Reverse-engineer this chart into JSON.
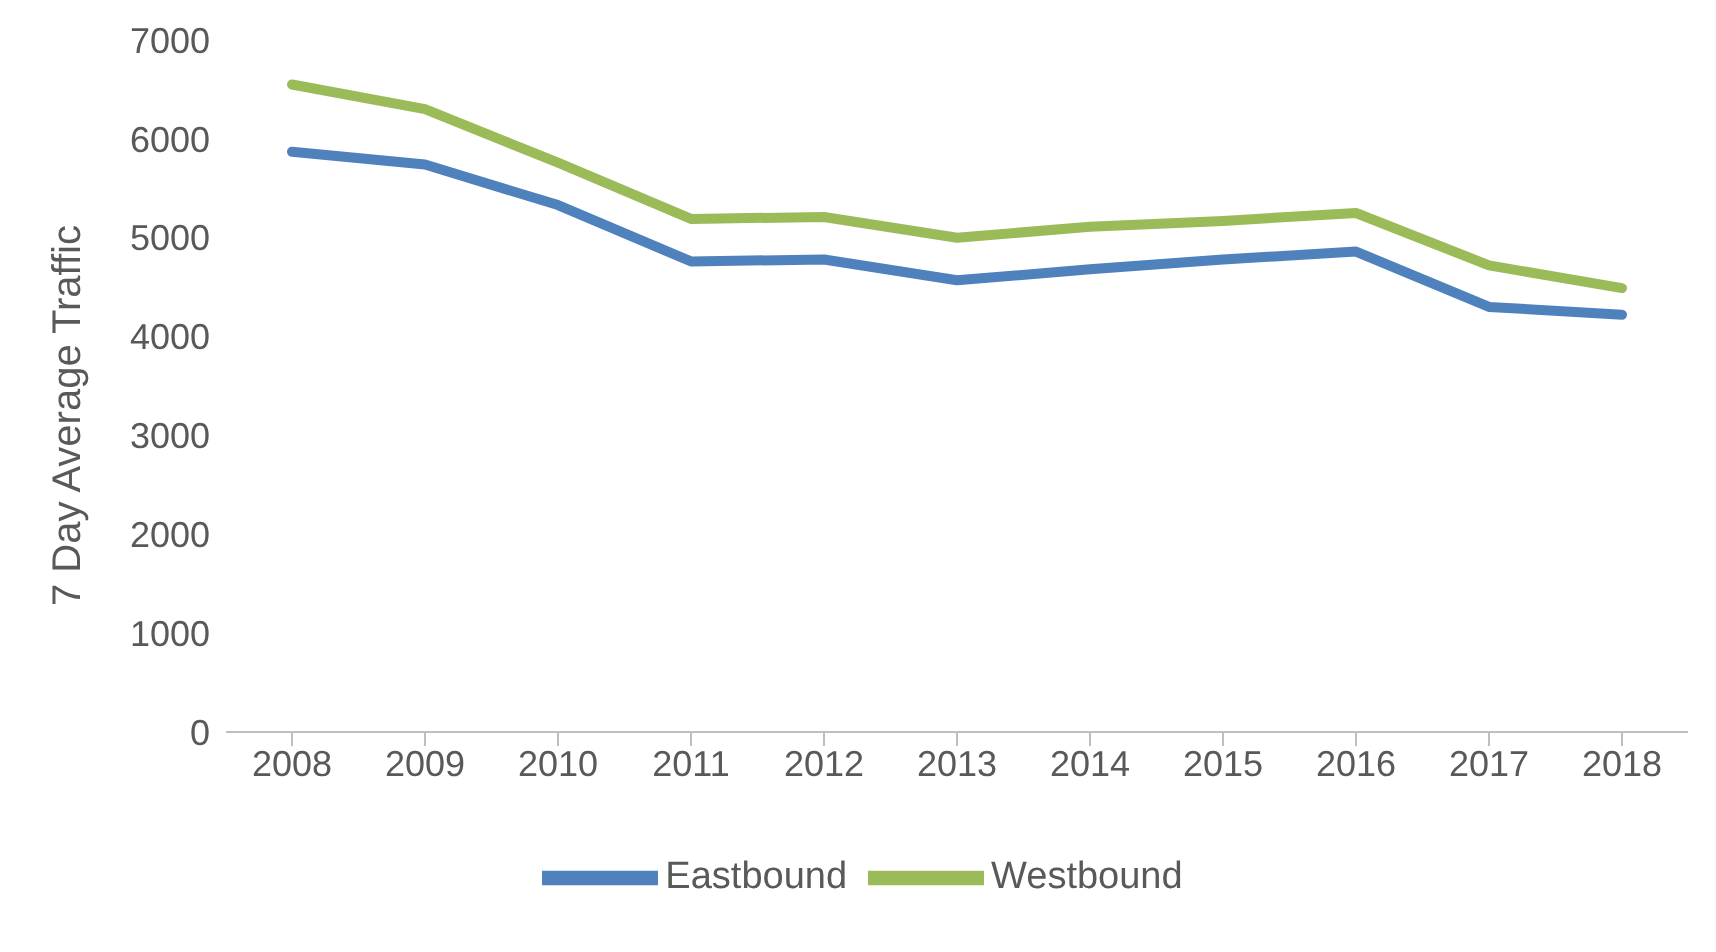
{
  "chart_data": {
    "type": "line",
    "ylabel": "7 Day Average Traffic",
    "categories": [
      "2008",
      "2009",
      "2010",
      "2011",
      "2012",
      "2013",
      "2014",
      "2015",
      "2016",
      "2017",
      "2018"
    ],
    "series": [
      {
        "name": "Eastbound",
        "color": "#4f81bd",
        "values": [
          5870,
          5740,
          5330,
          4760,
          4780,
          4570,
          4680,
          4780,
          4860,
          4300,
          4220
        ]
      },
      {
        "name": "Westbound",
        "color": "#9bbb59",
        "values": [
          6550,
          6300,
          5760,
          5190,
          5210,
          5000,
          5110,
          5170,
          5250,
          4720,
          4490
        ]
      }
    ],
    "ylim": [
      0,
      7000
    ],
    "yticks": [
      0,
      1000,
      2000,
      3000,
      4000,
      5000,
      6000,
      7000
    ],
    "grid": false,
    "legend": "bottom",
    "marker": "none",
    "line_style": "solid"
  }
}
